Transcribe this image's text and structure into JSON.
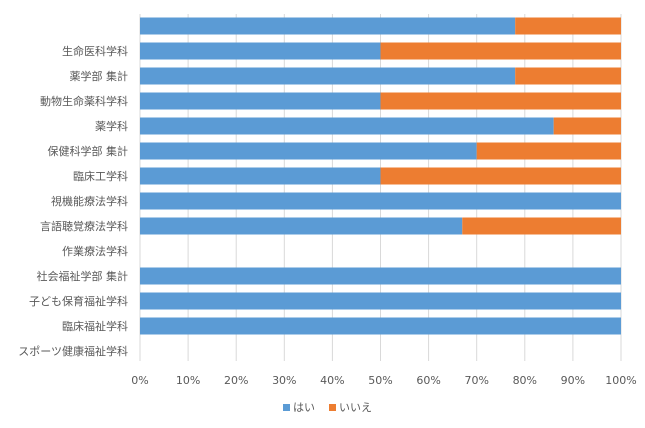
{
  "chart_data": {
    "type": "bar",
    "orientation": "horizontal",
    "stacked": "percent",
    "categories": [
      "",
      "生命医科学科",
      "薬学部 集計",
      "動物生命薬科学科",
      "薬学科",
      "保健科学部 集計",
      "臨床工学科",
      "視機能療法学科",
      "言語聴覚療法学科",
      "作業療法学科",
      "社会福祉学部 集計",
      "子ども保育福祉学科",
      "臨床福祉学科",
      "スポーツ健康福祉学科"
    ],
    "series": [
      {
        "name": "はい",
        "color": "#5b9bd5",
        "values": [
          78,
          50,
          78,
          50,
          86,
          70,
          50,
          100,
          67,
          0,
          100,
          100,
          100,
          0
        ]
      },
      {
        "name": "いいえ",
        "color": "#ed7d31",
        "values": [
          22,
          50,
          22,
          50,
          14,
          30,
          50,
          0,
          33,
          0,
          0,
          0,
          0,
          0
        ]
      }
    ],
    "xticks": [
      "0%",
      "10%",
      "20%",
      "30%",
      "40%",
      "50%",
      "60%",
      "70%",
      "80%",
      "90%",
      "100%"
    ],
    "xlim": [
      0,
      100
    ],
    "grid": true,
    "legend_position": "bottom"
  }
}
